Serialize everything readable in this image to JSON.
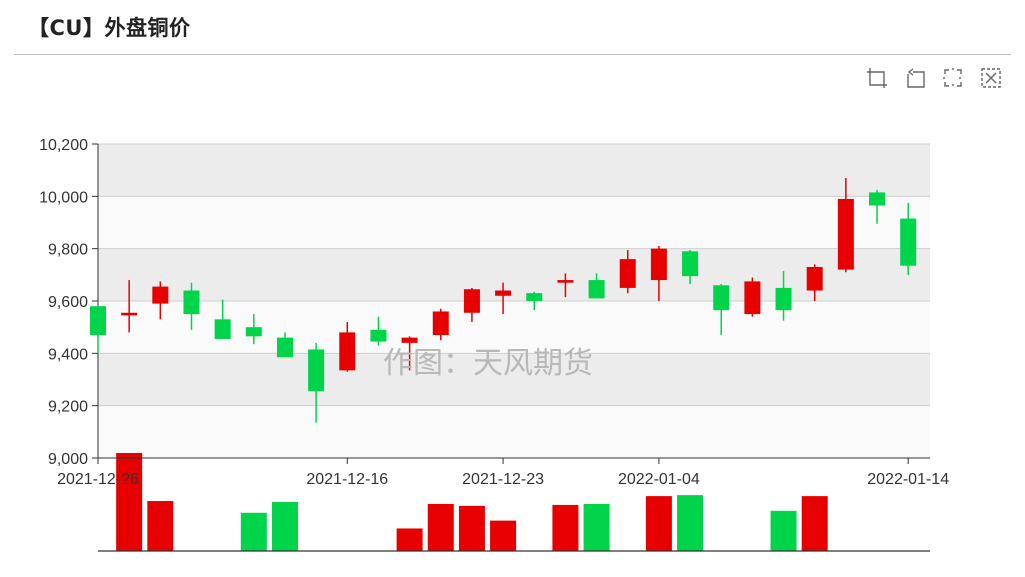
{
  "page": {
    "title": "【CU】外盘铜价"
  },
  "toolbox": {
    "icons": [
      "zoom-select-icon",
      "zoom-back-icon",
      "restore-icon",
      "save-image-icon"
    ]
  },
  "watermark": "作图：天风期货",
  "colors": {
    "up": "#e60000",
    "down": "#00d44a",
    "band_dark": "#ececec",
    "band_light": "#fafafa"
  },
  "chart_data": [
    {
      "type": "candlestick",
      "title": "",
      "ylim": [
        9000,
        10200
      ],
      "yticks": [
        "9,000",
        "9,200",
        "9,400",
        "9,600",
        "9,800",
        "10,000",
        "10,200"
      ],
      "ytick_values": [
        9000,
        9200,
        9400,
        9600,
        9800,
        10000,
        10200
      ],
      "xtick_labels": [
        {
          "index": 0,
          "label": "2021-12-?6"
        },
        {
          "index": 8,
          "label": "2021-12-16"
        },
        {
          "index": 13,
          "label": "2021-12-23"
        },
        {
          "index": 18,
          "label": "2022-01-04"
        },
        {
          "index": 26,
          "label": "2022-01-14"
        }
      ],
      "grid": "banded",
      "candles": [
        {
          "o": 9580,
          "c": 9470,
          "h": 9580,
          "l": 9400
        },
        {
          "o": 9545,
          "c": 9555,
          "h": 9680,
          "l": 9480
        },
        {
          "o": 9590,
          "c": 9655,
          "h": 9675,
          "l": 9530
        },
        {
          "o": 9640,
          "c": 9550,
          "h": 9670,
          "l": 9490
        },
        {
          "o": 9530,
          "c": 9455,
          "h": 9605,
          "l": 9455
        },
        {
          "o": 9500,
          "c": 9465,
          "h": 9550,
          "l": 9435
        },
        {
          "o": 9460,
          "c": 9385,
          "h": 9480,
          "l": 9385
        },
        {
          "o": 9415,
          "c": 9255,
          "h": 9440,
          "l": 9135
        },
        {
          "o": 9335,
          "c": 9480,
          "h": 9520,
          "l": 9330
        },
        {
          "o": 9490,
          "c": 9445,
          "h": 9540,
          "l": 9430
        },
        {
          "o": 9440,
          "c": 9460,
          "h": 9465,
          "l": 9335
        },
        {
          "o": 9470,
          "c": 9560,
          "h": 9570,
          "l": 9450
        },
        {
          "o": 9555,
          "c": 9645,
          "h": 9650,
          "l": 9520
        },
        {
          "o": 9620,
          "c": 9640,
          "h": 9670,
          "l": 9550
        },
        {
          "o": 9630,
          "c": 9600,
          "h": 9635,
          "l": 9565
        },
        {
          "o": 9670,
          "c": 9680,
          "h": 9705,
          "l": 9615
        },
        {
          "o": 9680,
          "c": 9610,
          "h": 9705,
          "l": 9610
        },
        {
          "o": 9650,
          "c": 9760,
          "h": 9795,
          "l": 9630
        },
        {
          "o": 9680,
          "c": 9800,
          "h": 9810,
          "l": 9600
        },
        {
          "o": 9790,
          "c": 9695,
          "h": 9795,
          "l": 9665
        },
        {
          "o": 9660,
          "c": 9565,
          "h": 9665,
          "l": 9470
        },
        {
          "o": 9550,
          "c": 9675,
          "h": 9690,
          "l": 9540
        },
        {
          "o": 9650,
          "c": 9565,
          "h": 9715,
          "l": 9525
        },
        {
          "o": 9640,
          "c": 9730,
          "h": 9740,
          "l": 9600
        },
        {
          "o": 9720,
          "c": 9990,
          "h": 10070,
          "l": 9710
        },
        {
          "o": 10015,
          "c": 9965,
          "h": 10025,
          "l": 9895
        },
        {
          "o": 9915,
          "c": 9735,
          "h": 9975,
          "l": 9700
        }
      ]
    },
    {
      "type": "bar",
      "title": "",
      "description": "volume",
      "bars": [
        {
          "index": 1,
          "value": 100,
          "dir": "up"
        },
        {
          "index": 2,
          "value": 51,
          "dir": "up"
        },
        {
          "index": 5,
          "value": 39,
          "dir": "down"
        },
        {
          "index": 6,
          "value": 50,
          "dir": "down"
        },
        {
          "index": 10,
          "value": 23,
          "dir": "up"
        },
        {
          "index": 11,
          "value": 48,
          "dir": "up"
        },
        {
          "index": 12,
          "value": 46,
          "dir": "up"
        },
        {
          "index": 13,
          "value": 31,
          "dir": "up"
        },
        {
          "index": 15,
          "value": 47,
          "dir": "up"
        },
        {
          "index": 16,
          "value": 48,
          "dir": "down"
        },
        {
          "index": 18,
          "value": 56,
          "dir": "up"
        },
        {
          "index": 19,
          "value": 57,
          "dir": "down"
        },
        {
          "index": 22,
          "value": 41,
          "dir": "down"
        },
        {
          "index": 23,
          "value": 56,
          "dir": "up"
        }
      ]
    }
  ]
}
